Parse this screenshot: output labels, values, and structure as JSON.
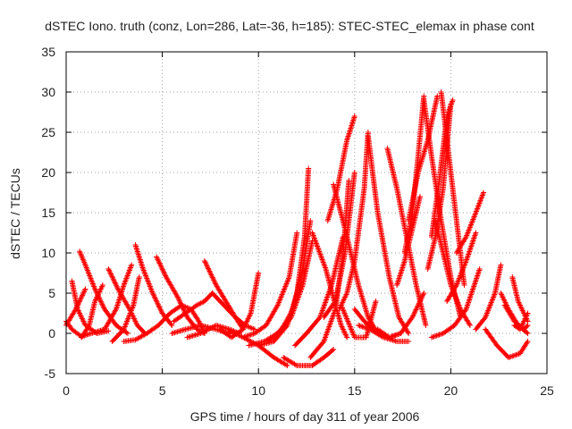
{
  "chart_data": {
    "type": "scatter",
    "title": "dSTEC Iono. truth (conz, Lon=286, Lat=-36, h=185): STEC-STEC_elemax in phase cont",
    "xlabel": "GPS time / hours of day 311 of year 2006",
    "ylabel": "dSTEC  / TECUs",
    "xlim": [
      0,
      25
    ],
    "ylim": [
      -5,
      35
    ],
    "x_ticks": [
      0,
      5,
      10,
      15,
      20,
      25
    ],
    "y_ticks": [
      -5,
      0,
      5,
      10,
      15,
      20,
      25,
      30,
      35
    ],
    "grid": true,
    "legend": "none",
    "marker": "plus",
    "color": "#ff0000",
    "arcs": [
      {
        "x": [
          0.0,
          0.5,
          1.0
        ],
        "y": [
          1.0,
          3.0,
          5.5
        ]
      },
      {
        "x": [
          0.0,
          0.3,
          0.8,
          1.3
        ],
        "y": [
          1.5,
          0.5,
          -0.4,
          0.0
        ]
      },
      {
        "x": [
          0.3,
          0.6,
          1.0,
          1.6,
          2.2
        ],
        "y": [
          6.5,
          3.0,
          1.0,
          0.0,
          0.3
        ]
      },
      {
        "x": [
          0.7,
          1.0,
          1.5,
          2.0,
          2.6,
          3.2
        ],
        "y": [
          10.2,
          8.5,
          5.5,
          3.0,
          1.0,
          0.0
        ]
      },
      {
        "x": [
          0.8,
          1.2,
          1.5,
          1.9
        ],
        "y": [
          -0.5,
          1.0,
          4.0,
          6.0
        ]
      },
      {
        "x": [
          1.3,
          2.0,
          2.6,
          3.0,
          3.4
        ],
        "y": [
          0.0,
          0.5,
          3.0,
          6.0,
          8.5
        ]
      },
      {
        "x": [
          2.2,
          2.7,
          3.3,
          3.7,
          4.1
        ],
        "y": [
          8.0,
          5.5,
          3.0,
          1.0,
          0.0
        ]
      },
      {
        "x": [
          2.4,
          3.0,
          3.5,
          3.8
        ],
        "y": [
          -1.0,
          0.5,
          3.5,
          7.0
        ]
      },
      {
        "x": [
          3.0,
          3.6,
          4.2,
          4.8,
          5.4,
          6.0,
          6.5,
          6.9,
          7.2
        ],
        "y": [
          -1.0,
          -0.8,
          0.0,
          1.0,
          2.5,
          3.5,
          3.0,
          1.5,
          0.0
        ]
      },
      {
        "x": [
          3.6,
          4.0,
          4.5,
          5.0,
          5.5
        ],
        "y": [
          11.0,
          8.0,
          5.0,
          2.5,
          1.0
        ]
      },
      {
        "x": [
          4.7,
          5.2,
          5.8,
          6.3,
          6.8,
          7.2
        ],
        "y": [
          9.5,
          7.0,
          4.5,
          2.0,
          0.5,
          0.0
        ]
      },
      {
        "x": [
          5.5,
          6.2,
          7.0,
          7.8,
          8.5
        ],
        "y": [
          0.0,
          0.5,
          1.0,
          0.5,
          0.0
        ]
      },
      {
        "x": [
          5.6,
          6.2,
          6.8,
          7.2,
          7.6
        ],
        "y": [
          1.5,
          2.5,
          3.5,
          4.0,
          5.0
        ]
      },
      {
        "x": [
          6.3,
          7.0,
          7.8,
          8.5,
          9.0
        ],
        "y": [
          -0.5,
          0.0,
          1.0,
          0.5,
          0.0
        ]
      },
      {
        "x": [
          7.2,
          7.8,
          8.3,
          8.8,
          9.2
        ],
        "y": [
          9.0,
          6.0,
          4.0,
          2.0,
          0.5
        ]
      },
      {
        "x": [
          7.6,
          8.2,
          8.8,
          9.3,
          9.8
        ],
        "y": [
          5.0,
          3.5,
          2.0,
          1.0,
          0.5
        ]
      },
      {
        "x": [
          8.0,
          8.6,
          9.2,
          9.6,
          10.0
        ],
        "y": [
          0.5,
          -0.5,
          0.5,
          2.5,
          7.5
        ]
      },
      {
        "x": [
          8.5,
          9.2,
          10.0,
          10.8,
          11.5
        ],
        "y": [
          0.3,
          -0.5,
          -1.5,
          -3.0,
          -4.0
        ]
      },
      {
        "x": [
          9.2,
          9.8,
          10.4,
          11.0,
          11.6,
          12.0
        ],
        "y": [
          -0.5,
          0.0,
          1.0,
          3.5,
          7.0,
          12.5
        ]
      },
      {
        "x": [
          9.5,
          10.3,
          11.0,
          11.7,
          12.3,
          12.8
        ],
        "y": [
          -1.5,
          -1.0,
          0.0,
          2.0,
          6.0,
          11.5
        ]
      },
      {
        "x": [
          10.0,
          10.8,
          11.5,
          12.0,
          12.4,
          12.6
        ],
        "y": [
          -1.5,
          -1.0,
          1.0,
          5.0,
          12.0,
          20.5
        ]
      },
      {
        "x": [
          10.5,
          11.2,
          11.8,
          12.3,
          12.7
        ],
        "y": [
          -1.0,
          0.5,
          3.0,
          8.0,
          14.0
        ]
      },
      {
        "x": [
          11.3,
          12.0,
          12.8,
          13.4,
          13.9
        ],
        "y": [
          -3.0,
          -4.0,
          -4.0,
          -3.0,
          -2.0
        ]
      },
      {
        "x": [
          11.9,
          12.5,
          13.2,
          13.8,
          14.4
        ],
        "y": [
          -1.5,
          0.0,
          2.0,
          6.0,
          12.0
        ]
      },
      {
        "x": [
          12.7,
          13.4,
          14.0,
          14.4,
          14.7
        ],
        "y": [
          -3.0,
          -1.0,
          3.0,
          10.0,
          19.0
        ]
      },
      {
        "x": [
          12.8,
          13.5,
          14.0,
          14.3,
          14.6
        ],
        "y": [
          12.5,
          8.0,
          3.5,
          1.0,
          -0.5
        ]
      },
      {
        "x": [
          13.4,
          14.0,
          14.5,
          15.0
        ],
        "y": [
          2.0,
          4.0,
          10.0,
          20.0
        ]
      },
      {
        "x": [
          13.6,
          14.1,
          14.6,
          15.0
        ],
        "y": [
          14.0,
          18.0,
          24.0,
          27.0
        ]
      },
      {
        "x": [
          13.9,
          14.5,
          15.2,
          15.7,
          16.2
        ],
        "y": [
          18.5,
          13.0,
          6.0,
          2.0,
          0.0
        ]
      },
      {
        "x": [
          14.3,
          15.0,
          15.6,
          16.1
        ],
        "y": [
          3.5,
          -0.5,
          -0.5,
          4.0
        ]
      },
      {
        "x": [
          14.2,
          14.6,
          15.0,
          15.5,
          15.7
        ],
        "y": [
          3.0,
          5.0,
          9.0,
          18.0,
          25.0
        ]
      },
      {
        "x": [
          15.0,
          15.5,
          16.2,
          16.8,
          17.4
        ],
        "y": [
          3.0,
          1.5,
          0.0,
          -0.5,
          0.0
        ]
      },
      {
        "x": [
          15.2,
          15.8,
          16.5,
          17.2,
          17.8
        ],
        "y": [
          1.0,
          0.5,
          -0.5,
          -1.0,
          -1.0
        ]
      },
      {
        "x": [
          15.7,
          16.2,
          16.8,
          17.3,
          17.8
        ],
        "y": [
          24.5,
          15.0,
          7.0,
          2.0,
          0.0
        ]
      },
      {
        "x": [
          16.2,
          16.8,
          17.4,
          18.0,
          18.6
        ],
        "y": [
          0.5,
          -0.5,
          0.0,
          2.0,
          5.0
        ]
      },
      {
        "x": [
          16.7,
          17.2,
          17.7,
          18.2,
          18.7
        ],
        "y": [
          23.0,
          18.0,
          12.0,
          6.0,
          1.0
        ]
      },
      {
        "x": [
          17.2,
          17.6,
          18.0,
          18.4
        ],
        "y": [
          6.0,
          9.0,
          13.0,
          17.0
        ]
      },
      {
        "x": [
          17.6,
          18.0,
          18.3,
          18.6
        ],
        "y": [
          10.0,
          15.0,
          22.0,
          29.5
        ]
      },
      {
        "x": [
          17.8,
          18.3,
          18.8,
          19.3
        ],
        "y": [
          14.0,
          20.0,
          24.0,
          29.5
        ]
      },
      {
        "x": [
          18.6,
          19.0,
          19.5,
          20.0,
          20.5
        ],
        "y": [
          29.0,
          22.0,
          14.0,
          7.0,
          2.0
        ]
      },
      {
        "x": [
          18.8,
          19.2,
          19.6,
          20.0
        ],
        "y": [
          8.0,
          12.0,
          18.0,
          28.5
        ]
      },
      {
        "x": [
          19.0,
          19.4,
          19.8,
          20.1
        ],
        "y": [
          12.0,
          19.0,
          27.0,
          29.0
        ]
      },
      {
        "x": [
          19.2,
          19.6,
          20.0,
          20.5,
          21.0
        ],
        "y": [
          14.0,
          10.0,
          6.0,
          3.0,
          1.0
        ]
      },
      {
        "x": [
          19.5,
          19.9,
          20.3,
          20.7
        ],
        "y": [
          30.0,
          22.0,
          14.0,
          6.0
        ]
      },
      {
        "x": [
          19.8,
          20.3,
          20.8,
          21.3
        ],
        "y": [
          4.0,
          6.0,
          9.0,
          12.5
        ]
      },
      {
        "x": [
          19.0,
          19.6,
          20.2,
          20.8,
          21.5
        ],
        "y": [
          -0.5,
          0.0,
          1.0,
          3.0,
          8.0
        ]
      },
      {
        "x": [
          20.3,
          20.8,
          21.3,
          21.7
        ],
        "y": [
          10.0,
          12.0,
          15.0,
          17.5
        ]
      },
      {
        "x": [
          21.3,
          21.8,
          22.3,
          22.6
        ],
        "y": [
          0.5,
          2.0,
          5.0,
          8.5
        ]
      },
      {
        "x": [
          21.8,
          22.4,
          23.0,
          23.6,
          24.0
        ],
        "y": [
          0.5,
          -1.5,
          -3.0,
          -2.5,
          -1.0
        ]
      },
      {
        "x": [
          22.6,
          23.0,
          23.5,
          24.0
        ],
        "y": [
          5.0,
          3.0,
          1.0,
          0.0
        ]
      },
      {
        "x": [
          22.8,
          23.3,
          23.8,
          24.0
        ],
        "y": [
          3.5,
          1.5,
          0.5,
          1.0
        ]
      },
      {
        "x": [
          23.2,
          23.5,
          23.8,
          24.0
        ],
        "y": [
          7.0,
          4.0,
          2.5,
          1.5
        ]
      },
      {
        "x": [
          23.3,
          23.6,
          24.0
        ],
        "y": [
          1.0,
          0.5,
          2.5
        ]
      }
    ]
  }
}
